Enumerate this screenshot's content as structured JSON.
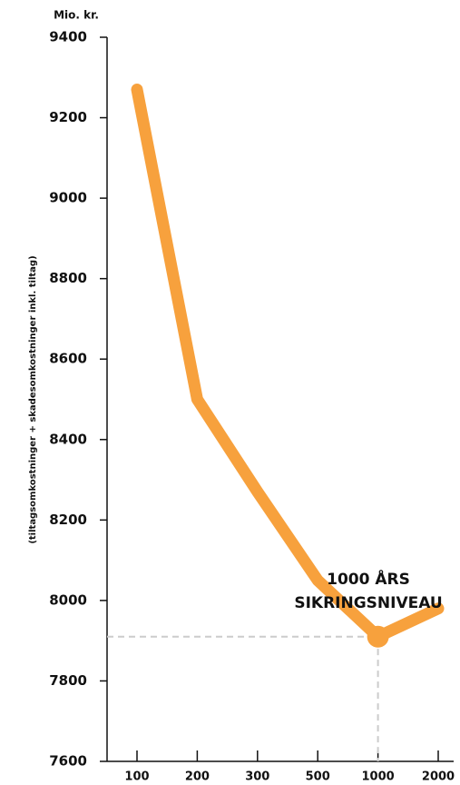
{
  "chart_data": {
    "type": "line",
    "y_unit": "Mio. kr.",
    "y_label": "(tiltagsomkostninger + skadesomkostninger inkl. tiltag)",
    "categories": [
      "100",
      "200",
      "300",
      "500",
      "1000",
      "2000"
    ],
    "values": [
      9270,
      8500,
      8270,
      8050,
      7910,
      7980
    ],
    "color": "#f7a13d",
    "ylim": [
      7600,
      9400
    ],
    "yticks": [
      7600,
      7800,
      8000,
      8200,
      8400,
      8600,
      8800,
      9000,
      9200,
      9400
    ],
    "highlight": "1000",
    "annotation": [
      "1000 ÅRS",
      "SIKRINGSNIVEAU"
    ]
  }
}
